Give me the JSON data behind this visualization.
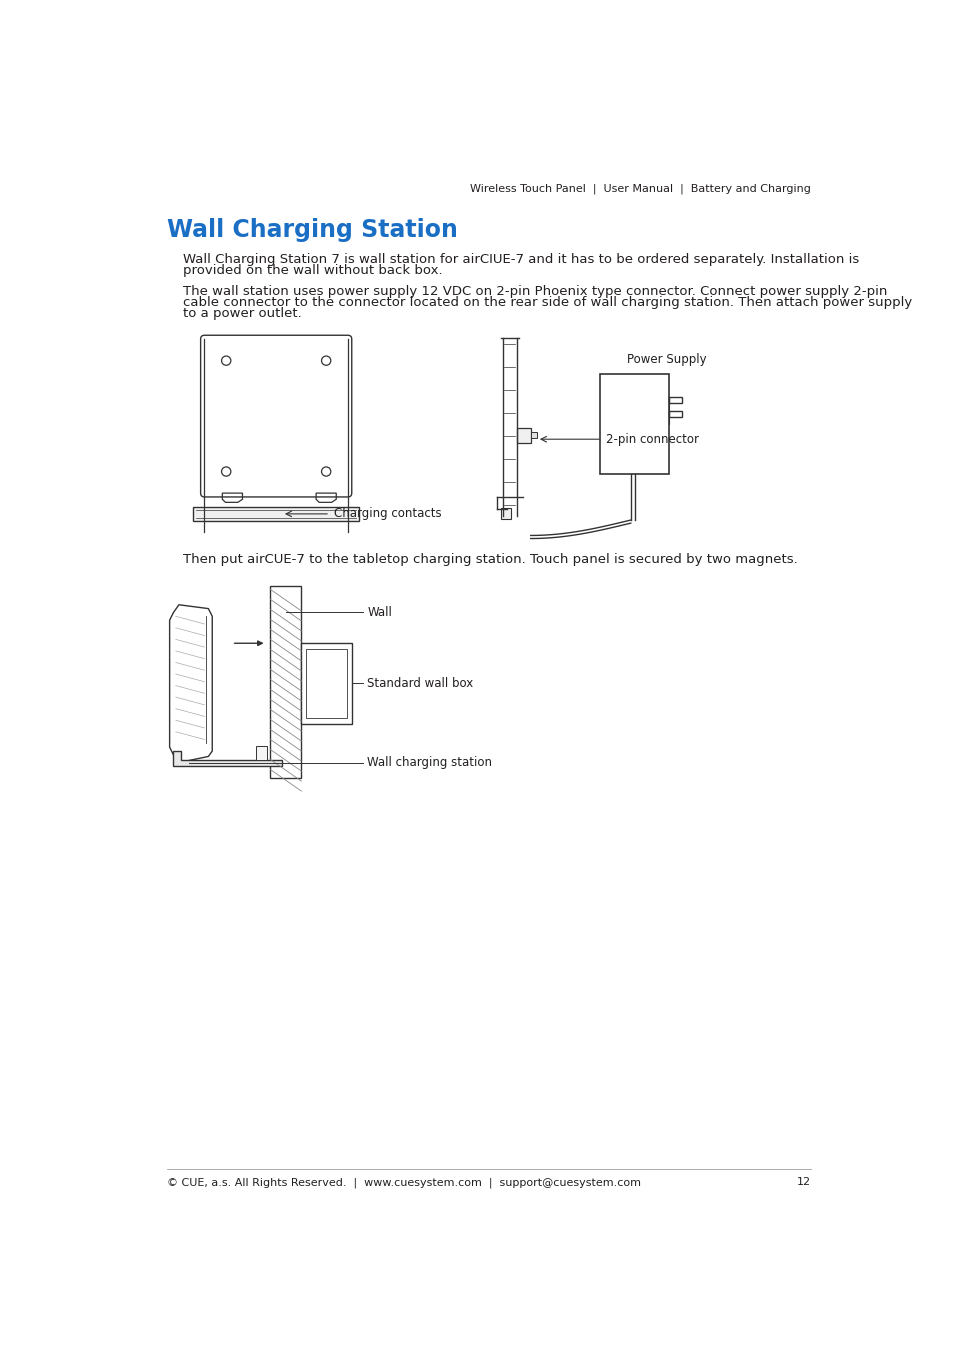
{
  "header_text": "Wireless Touch Panel  |  User Manual  |  Battery and Charging",
  "title": "Wall Charging Station",
  "title_color": "#1a6fc4",
  "para1_line1": "Wall Charging Station 7 is wall station for airCIUE-7 and it has to be ordered separately. Installation is",
  "para1_line2": "provided on the wall without back box.",
  "para2_line1": "The wall station uses power supply 12 VDC on 2-pin Phoenix type connector. Connect power supply 2-pin",
  "para2_line2": "cable connector to the connector located on the rear side of wall charging station. Then attach power supply",
  "para2_line3": "to a power outlet.",
  "para3": "Then put airCUE-7 to the tabletop charging station. Touch panel is secured by two magnets.",
  "label_charging": "Charging contacts",
  "label_power": "Power Supply",
  "label_2pin": "2-pin connector",
  "label_wall": "Wall",
  "label_wallbox": "Standard wall box",
  "label_wallstation": "Wall charging station",
  "footer_text": "© CUE, a.s. All Rights Reserved.  |  www.cuesystem.com  |  support@cuesystem.com",
  "footer_page": "12",
  "bg_color": "#ffffff",
  "text_color": "#231f20",
  "body_font_size": 9.5,
  "title_font_size": 17,
  "header_font_size": 8,
  "footer_font_size": 8,
  "label_font_size": 8.5,
  "line_color": "#333333"
}
